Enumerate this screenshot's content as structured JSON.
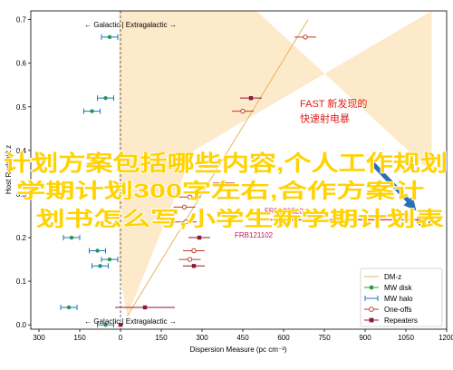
{
  "chart_data": {
    "type": "scatter",
    "xlabel": "Dispersion Measure (pc cm⁻³)",
    "ylabel": "Host Redshift z",
    "xlim": [
      -330,
      1200
    ],
    "ylim": [
      -0.01,
      0.72
    ],
    "x_ticks": [
      -300,
      -150,
      0,
      150,
      300,
      450,
      600,
      750,
      900,
      1050,
      1200
    ],
    "x_tick_labels": [
      "300",
      "150",
      "0",
      "150",
      "300",
      "450",
      "600",
      "750",
      "900",
      "1050",
      "1200"
    ],
    "y_ticks": [
      0.0,
      0.1,
      0.2,
      0.3,
      0.4,
      0.5,
      0.6,
      0.7
    ],
    "y_tick_labels": [
      "0.0",
      "0.1",
      "0.2",
      "0.3",
      "0.4",
      "0.5",
      "0.6",
      "0.7"
    ],
    "grid": false,
    "legend_position": "bottom-right",
    "top_divider_label": "← Galactic | Extragalactic →",
    "bottom_divider_label": "← Galactic | Extragalactic →",
    "dmz_line": [
      [
        25,
        0.02
      ],
      [
        690,
        0.7
      ]
    ],
    "dmz_band_upper": [
      [
        -5,
        0.12
      ],
      [
        -5,
        0.72
      ],
      [
        500,
        0.72
      ],
      [
        1145,
        0.35
      ],
      [
        1145,
        0.25
      ]
    ],
    "dmz_band_lower": [
      [
        25,
        0.02
      ],
      [
        270,
        0.4
      ],
      [
        1145,
        0.72
      ]
    ],
    "series": [
      {
        "name": "MW disk",
        "color": "#2ca02c",
        "points": [
          {
            "x": -40,
            "y": 0.66,
            "xerr": 0
          },
          {
            "x": -55,
            "y": 0.52,
            "xerr": 0
          },
          {
            "x": -105,
            "y": 0.49,
            "xerr": 0
          },
          {
            "x": -180,
            "y": 0.2,
            "xerr": 0
          },
          {
            "x": -85,
            "y": 0.17,
            "xerr": 0
          },
          {
            "x": -40,
            "y": 0.15,
            "xerr": 0
          },
          {
            "x": -75,
            "y": 0.135,
            "xerr": 0
          },
          {
            "x": -190,
            "y": 0.04,
            "xerr": 0
          },
          {
            "x": -55,
            "y": 0.0,
            "xerr": 0
          }
        ]
      },
      {
        "name": "MW halo",
        "color": "#1f77b4",
        "points": [
          {
            "x": -40,
            "y": 0.66,
            "xerr": 30
          },
          {
            "x": -55,
            "y": 0.52,
            "xerr": 30
          },
          {
            "x": -105,
            "y": 0.49,
            "xerr": 30
          },
          {
            "x": -180,
            "y": 0.2,
            "xerr": 30
          },
          {
            "x": -85,
            "y": 0.17,
            "xerr": 30
          },
          {
            "x": -40,
            "y": 0.15,
            "xerr": 30
          },
          {
            "x": -75,
            "y": 0.135,
            "xerr": 30
          },
          {
            "x": -190,
            "y": 0.04,
            "xerr": 30
          },
          {
            "x": -55,
            "y": 0.0,
            "xerr": 30
          }
        ]
      },
      {
        "name": "One-offs",
        "color": "#c0392b",
        "points": [
          {
            "x": 680,
            "y": 0.66,
            "xerr": 40
          },
          {
            "x": 450,
            "y": 0.49,
            "xerr": 40
          },
          {
            "x": 380,
            "y": 0.325,
            "xerr": 40
          },
          {
            "x": 255,
            "y": 0.293,
            "xerr": 40
          },
          {
            "x": 235,
            "y": 0.27,
            "xerr": 40
          },
          {
            "x": 240,
            "y": 0.236,
            "xerr": 40
          },
          {
            "x": 270,
            "y": 0.17,
            "xerr": 40
          },
          {
            "x": 255,
            "y": 0.15,
            "xerr": 40
          }
        ]
      },
      {
        "name": "Repeaters",
        "color": "#8b1a3a",
        "points": [
          {
            "x": 480,
            "y": 0.52,
            "xerr": 40
          },
          {
            "x": 290,
            "y": 0.2,
            "xerr": 40
          },
          {
            "x": 270,
            "y": 0.135,
            "xerr": 40
          },
          {
            "x": 90,
            "y": 0.04,
            "xerr": 110
          },
          {
            "x": 0,
            "y": 0.0,
            "xerr": 0
          }
        ]
      }
    ],
    "fast_point": {
      "x": 1115,
      "y": 0.241,
      "x_from": 530
    },
    "annotations": [
      {
        "text": "FAST 新发现的",
        "x": 660,
        "y": 0.5,
        "color": "#e0201b",
        "size": 11
      },
      {
        "text": "快速射电暴",
        "x": 660,
        "y": 0.465,
        "color": "#e0201b",
        "size": 11
      },
      {
        "text": "FRB121102",
        "x": 420,
        "y": 0.2,
        "color": "#c2185b",
        "size": 8
      },
      {
        "text": "FRB190520",
        "x": 530,
        "y": 0.255,
        "color": "#c2185b",
        "size": 8
      }
    ],
    "legend": [
      {
        "label": "DM-z",
        "style": "line",
        "color": "#e8c27a"
      },
      {
        "label": "MW disk",
        "style": "dot",
        "color": "#2ca02c"
      },
      {
        "label": "MW halo",
        "style": "errbar",
        "color": "#1f77b4"
      },
      {
        "label": "One-offs",
        "style": "circle",
        "color": "#c0392b"
      },
      {
        "label": "Repeaters",
        "style": "square",
        "color": "#8b1a3a"
      }
    ]
  },
  "watermark": {
    "lines": [
      "计划方案包括哪些内容,个人工作规划",
      "学期计划300字左右,合作方案计",
      "划书怎么写,小学生新学期计划表"
    ],
    "color": "#ffd200",
    "stroke": "#ffffff"
  }
}
